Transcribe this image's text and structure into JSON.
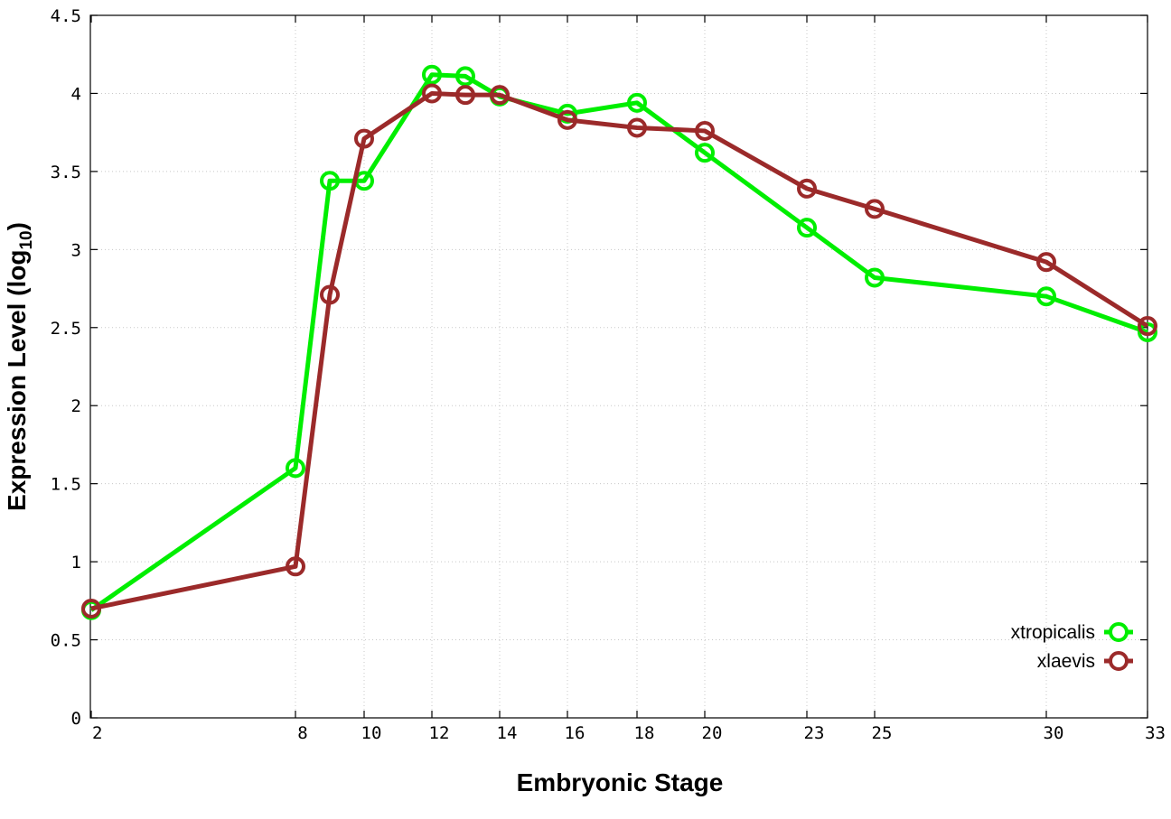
{
  "chart_data": {
    "type": "line",
    "title": "",
    "xlabel": "Embryonic Stage",
    "ylabel": {
      "main": "Expression Level (log",
      "sub": "10",
      "close": ")"
    },
    "x_tick_labels": [
      "2",
      "8",
      "10",
      "12",
      "14",
      "16",
      "18",
      "20",
      "23",
      "25",
      "30",
      "33"
    ],
    "y_tick_labels": [
      "0",
      "0.5",
      "1",
      "1.5",
      "2",
      "2.5",
      "3",
      "3.5",
      "4",
      "4.5"
    ],
    "ylim": [
      0,
      4.5
    ],
    "grid": true,
    "legend_position": "bottom-right",
    "series": [
      {
        "name": "xtropicalis",
        "color": "#00ee00",
        "marker": "open-circle",
        "x": [
          "2",
          "8",
          "9",
          "10",
          "12",
          "13",
          "14",
          "16",
          "18",
          "20",
          "23",
          "25",
          "30",
          "33"
        ],
        "values": [
          0.69,
          1.6,
          3.44,
          3.44,
          4.12,
          4.11,
          3.98,
          3.87,
          3.94,
          3.62,
          3.14,
          2.82,
          2.7,
          2.47
        ]
      },
      {
        "name": "xlaevis",
        "color": "#9b2a2a",
        "marker": "open-circle",
        "x": [
          "2",
          "8",
          "9",
          "10",
          "12",
          "13",
          "14",
          "16",
          "18",
          "20",
          "23",
          "25",
          "30",
          "33"
        ],
        "values": [
          0.7,
          0.97,
          2.71,
          3.71,
          4.0,
          3.99,
          3.99,
          3.83,
          3.78,
          3.76,
          3.39,
          3.26,
          2.92,
          2.51
        ]
      }
    ]
  }
}
